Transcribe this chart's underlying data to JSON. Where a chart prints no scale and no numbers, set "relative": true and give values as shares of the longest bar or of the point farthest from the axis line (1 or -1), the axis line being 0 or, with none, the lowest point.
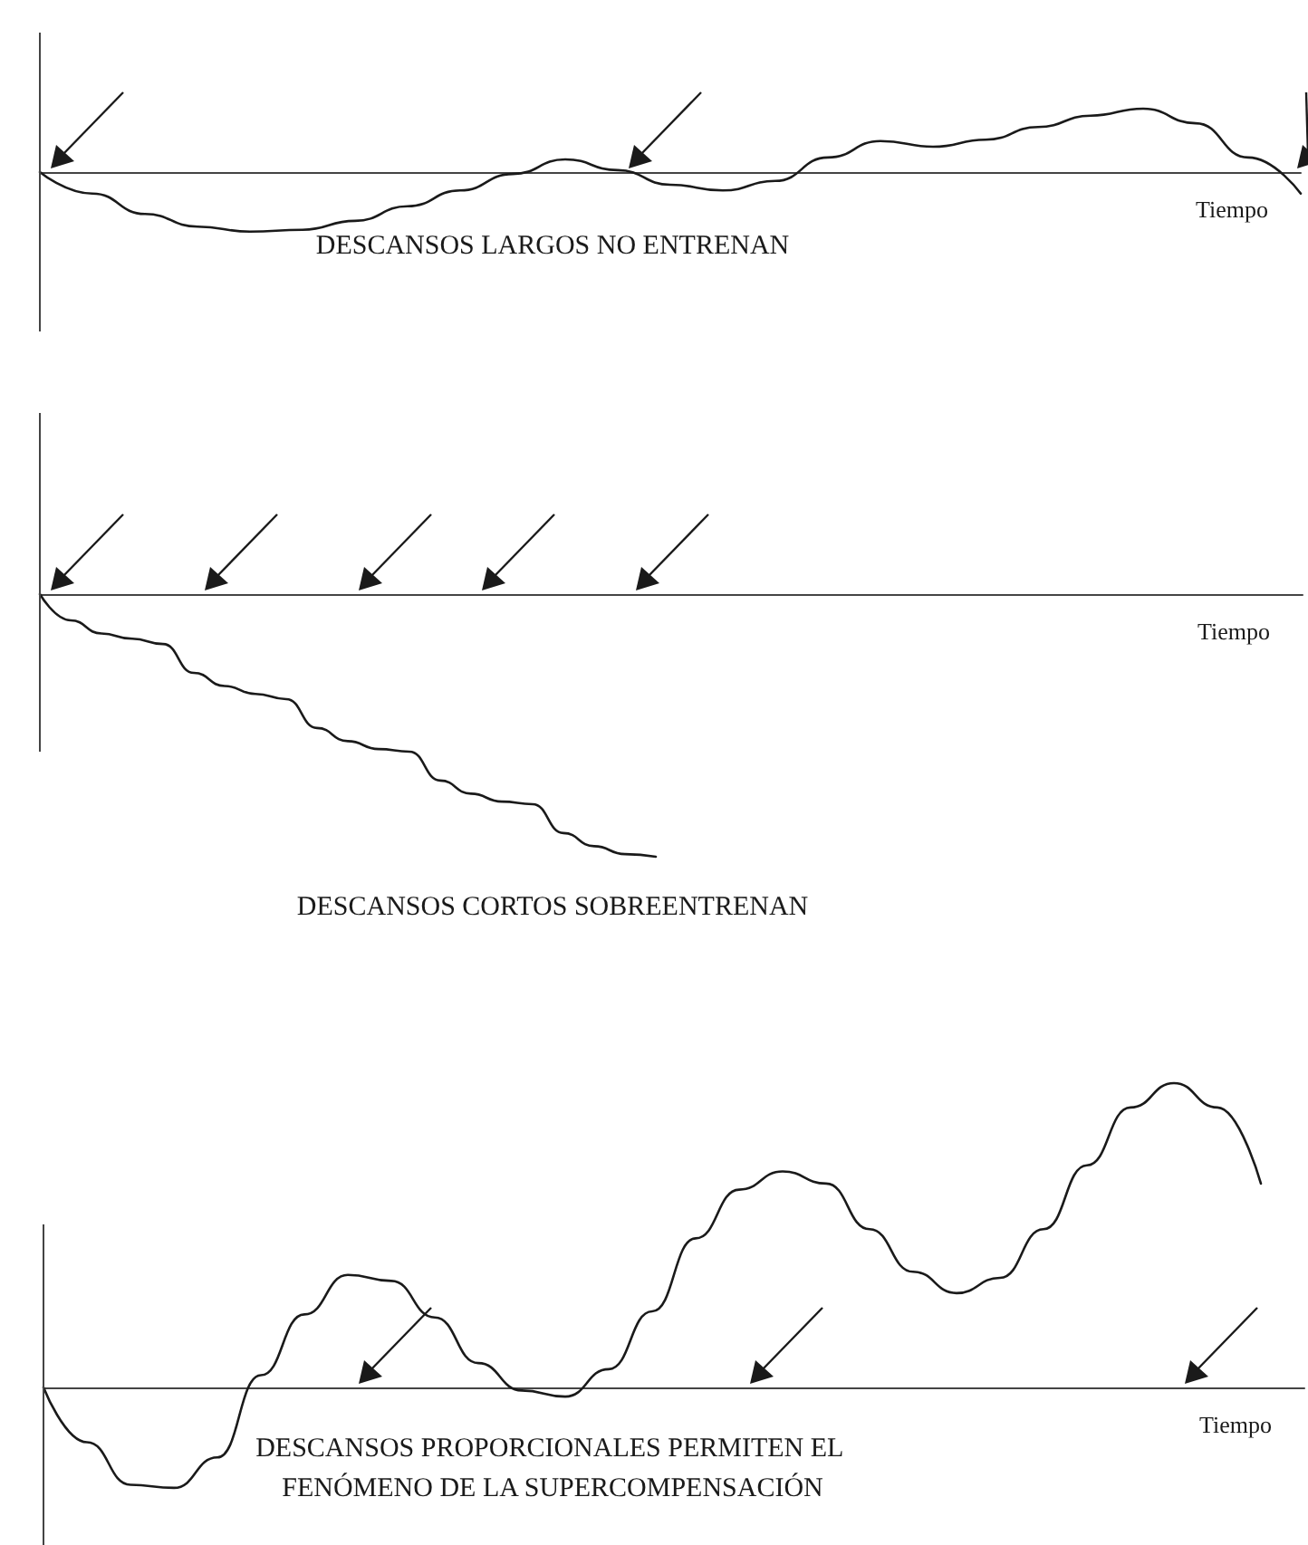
{
  "chart_data": [
    {
      "type": "line",
      "title": "DESCANSOS LARGOS NO ENTRENAN",
      "xlabel": "Tiempo",
      "relative": true,
      "color": "#1a1a1a",
      "marker": "none",
      "line_style": "solid",
      "categories": [
        null,
        null,
        null,
        null,
        null,
        null,
        null,
        null,
        null,
        null,
        null,
        null,
        null,
        null,
        null,
        null,
        null,
        null,
        null,
        null,
        null,
        null,
        null,
        null,
        null
      ],
      "values": [
        0,
        -0.34,
        -0.66,
        -0.86,
        -0.94,
        -0.91,
        -0.77,
        -0.54,
        -0.29,
        -0.03,
        0.2,
        0.03,
        -0.2,
        -0.29,
        -0.14,
        0.23,
        0.49,
        0.4,
        0.51,
        0.71,
        0.89,
        1,
        0.77,
        0.23,
        -0.34
      ]
    },
    {
      "type": "line",
      "title": "DESCANSOS CORTOS SOBREENTRENAN",
      "xlabel": "Tiempo",
      "relative": true,
      "color": "#1a1a1a",
      "marker": "none",
      "line_style": "solid",
      "categories": [
        null,
        null,
        null,
        null,
        null,
        null,
        null,
        null,
        null,
        null,
        null,
        null,
        null,
        null,
        null,
        null,
        null,
        null,
        null,
        null,
        null,
        null,
        null,
        null,
        null,
        null,
        null,
        null,
        null,
        null,
        null,
        null,
        null,
        null,
        null,
        null,
        null,
        null,
        null,
        null,
        null,
        null
      ],
      "values": [
        0,
        -0.1,
        -0.15,
        -0.17,
        -0.19,
        -0.3,
        -0.35,
        -0.38,
        -0.4,
        -0.51,
        -0.56,
        -0.59,
        -0.6,
        -0.71,
        -0.76,
        -0.79,
        -0.8,
        -0.91,
        -0.96,
        -0.99,
        -1,
        null,
        null,
        null,
        null,
        null,
        null,
        null,
        null,
        null,
        null,
        null,
        null,
        null,
        null,
        null,
        null,
        null,
        null,
        null,
        null,
        null
      ]
    },
    {
      "type": "line",
      "title": "DESCANSOS PROPORCIONALES PERMITEN EL FENÓMENO DE LA SUPERCOMPENSACIÓN",
      "xlabel": "Tiempo",
      "relative": true,
      "color": "#1a1a1a",
      "marker": "none",
      "line_style": "solid",
      "categories": [
        null,
        null,
        null,
        null,
        null,
        null,
        null,
        null,
        null,
        null,
        null,
        null,
        null,
        null,
        null,
        null,
        null,
        null,
        null,
        null,
        null,
        null,
        null,
        null,
        null,
        null,
        null,
        null,
        null,
        null
      ],
      "values": [
        0,
        -0.18,
        -0.32,
        -0.33,
        -0.23,
        0.04,
        0.24,
        0.37,
        0.35,
        0.23,
        0.08,
        -0.01,
        -0.03,
        0.06,
        0.25,
        0.49,
        0.65,
        0.71,
        0.67,
        0.52,
        0.38,
        0.31,
        0.36,
        0.52,
        0.73,
        0.92,
        1,
        0.92,
        0.67,
        null
      ]
    }
  ]
}
